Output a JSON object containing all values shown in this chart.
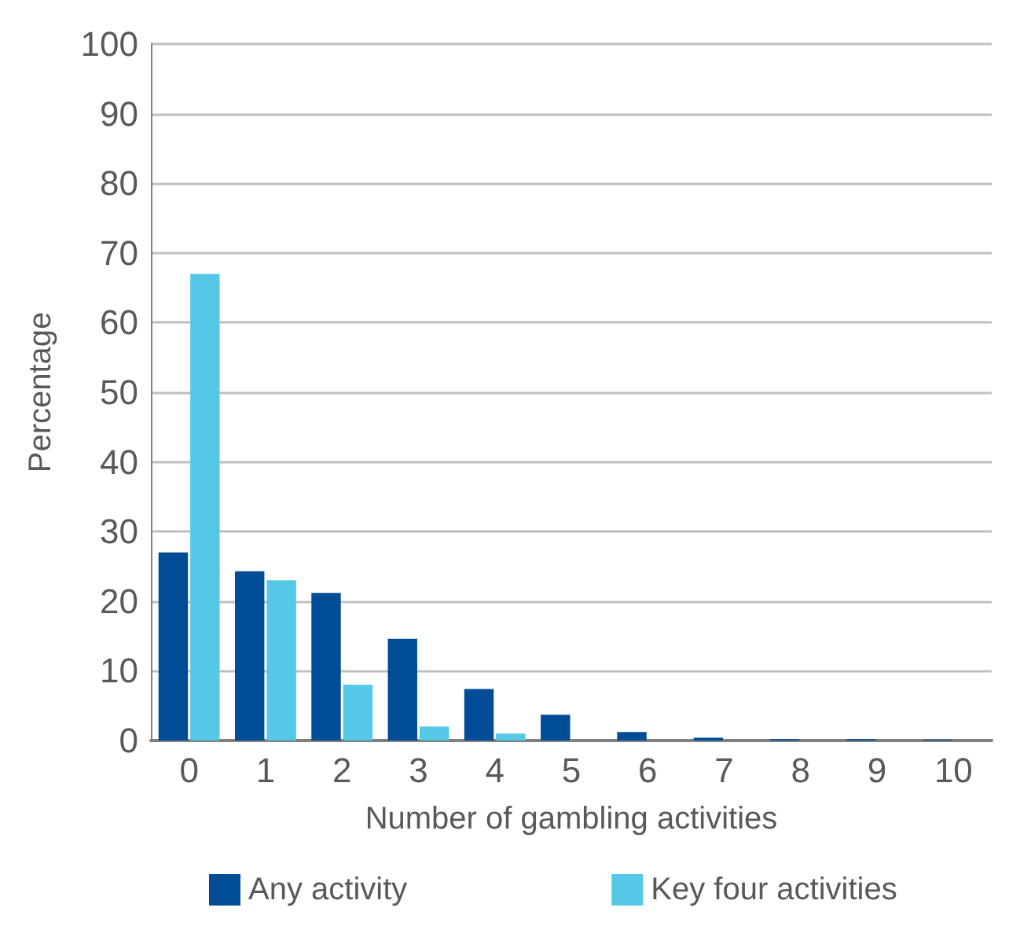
{
  "chart_data": {
    "type": "bar",
    "xlabel": "Number of gambling activities",
    "ylabel": "Percentage",
    "categories": [
      "0",
      "1",
      "2",
      "3",
      "4",
      "5",
      "6",
      "7",
      "8",
      "9",
      "10"
    ],
    "series": [
      {
        "name": "Any activity",
        "color": "#004c97",
        "values": [
          27,
          24.3,
          21.2,
          14.6,
          7.4,
          3.7,
          1.2,
          0.4,
          0.2,
          0.2,
          0.1
        ]
      },
      {
        "name": "Key four activities",
        "color": "#54c8e6",
        "values": [
          67,
          23,
          8,
          2,
          1,
          0,
          0,
          0,
          0,
          0,
          0
        ]
      }
    ],
    "ylim": [
      0,
      100
    ],
    "yticks": [
      0,
      10,
      20,
      30,
      40,
      50,
      60,
      70,
      80,
      90,
      100
    ],
    "grid": "y",
    "legend": "bottom"
  }
}
